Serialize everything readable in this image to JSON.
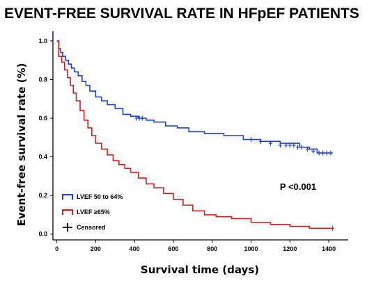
{
  "chart_data": {
    "type": "line",
    "title": "EVENT-FREE SURVIVAL RATE IN HFpEF PATIENTS",
    "xlabel": "Survival time (days)",
    "ylabel": "Event-free survival rate (%)",
    "xlim": [
      -20,
      1500
    ],
    "ylim": [
      -0.03,
      1.05
    ],
    "xticks": [
      0,
      200,
      400,
      600,
      800,
      1000,
      1200,
      1400
    ],
    "yticks": [
      0.0,
      0.2,
      0.4,
      0.6,
      0.8,
      1.0
    ],
    "annotation": "P <0.001",
    "legend": [
      {
        "label": "LVEF 50 to 64%",
        "color": "#1f3fcf",
        "kind": "series"
      },
      {
        "label": "LVEF ≥65%",
        "color": "#cc1f1f",
        "kind": "series"
      },
      {
        "label": "Censored",
        "color": "#111111",
        "kind": "censor"
      }
    ],
    "series": [
      {
        "name": "LVEF 50 to 64%",
        "color": "#1f3fcf",
        "x": [
          0,
          10,
          20,
          30,
          45,
          60,
          75,
          90,
          110,
          130,
          150,
          170,
          200,
          230,
          260,
          300,
          340,
          380,
          420,
          460,
          500,
          560,
          620,
          680,
          760,
          860,
          960,
          1050,
          1150,
          1250,
          1300,
          1340,
          1420
        ],
        "y": [
          1.0,
          0.96,
          0.94,
          0.92,
          0.9,
          0.88,
          0.86,
          0.84,
          0.82,
          0.79,
          0.77,
          0.74,
          0.71,
          0.69,
          0.67,
          0.65,
          0.62,
          0.61,
          0.6,
          0.59,
          0.58,
          0.56,
          0.55,
          0.53,
          0.52,
          0.51,
          0.49,
          0.48,
          0.47,
          0.45,
          0.44,
          0.42,
          0.42
        ],
        "censored_x": [
          410,
          425,
          440,
          1000,
          1050,
          1100,
          1150,
          1180,
          1200,
          1220,
          1240,
          1260,
          1290,
          1320,
          1350,
          1370,
          1390,
          1410
        ],
        "censored_y": [
          0.6,
          0.6,
          0.6,
          0.49,
          0.48,
          0.47,
          0.46,
          0.46,
          0.46,
          0.46,
          0.45,
          0.45,
          0.44,
          0.43,
          0.42,
          0.42,
          0.42,
          0.42
        ]
      },
      {
        "name": "LVEF ≥65%",
        "color": "#cc1f1f",
        "x": [
          0,
          10,
          25,
          40,
          55,
          70,
          85,
          100,
          120,
          140,
          160,
          180,
          200,
          230,
          260,
          290,
          320,
          350,
          380,
          420,
          460,
          500,
          550,
          600,
          650,
          700,
          760,
          820,
          900,
          1000,
          1100,
          1200,
          1300,
          1420
        ],
        "y": [
          1.0,
          0.92,
          0.89,
          0.85,
          0.81,
          0.77,
          0.73,
          0.69,
          0.64,
          0.59,
          0.55,
          0.51,
          0.47,
          0.44,
          0.41,
          0.38,
          0.36,
          0.34,
          0.32,
          0.29,
          0.26,
          0.24,
          0.21,
          0.18,
          0.15,
          0.12,
          0.1,
          0.09,
          0.08,
          0.06,
          0.05,
          0.04,
          0.03,
          0.03
        ]
      }
    ]
  }
}
